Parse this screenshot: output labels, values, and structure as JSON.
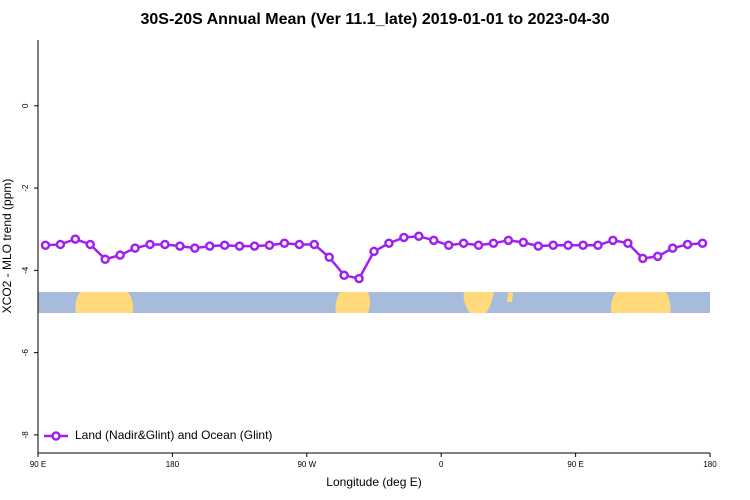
{
  "chart_data": {
    "type": "line",
    "title": "30S-20S Annual Mean (Ver 11.1_late)   2019-01-01 to 2023-04-30",
    "x_label": "Longitude (deg E)",
    "y_label": "XCO2 - MLO trend (ppm)",
    "x": [
      95,
      105,
      115,
      125,
      135,
      145,
      155,
      165,
      175,
      185,
      195,
      205,
      215,
      225,
      235,
      245,
      255,
      265,
      275,
      285,
      295,
      305,
      315,
      325,
      335,
      345,
      355,
      365,
      375,
      385,
      395,
      405,
      415,
      425,
      435,
      445,
      455,
      465,
      475,
      485,
      495,
      505,
      515,
      525,
      535
    ],
    "series": [
      {
        "name": "Land (Nadir&Glint) and Ocean (Glint)",
        "color": "#a020f0",
        "values": [
          -3.39,
          -3.37,
          -3.24,
          -3.37,
          -3.73,
          -3.63,
          -3.46,
          -3.37,
          -3.37,
          -3.41,
          -3.46,
          -3.41,
          -3.39,
          -3.41,
          -3.41,
          -3.39,
          -3.34,
          -3.37,
          -3.37,
          -3.68,
          -4.12,
          -4.2,
          -3.54,
          -3.34,
          -3.2,
          -3.17,
          -3.27,
          -3.39,
          -3.34,
          -3.39,
          -3.34,
          -3.27,
          -3.32,
          -3.41,
          -3.39,
          -3.39,
          -3.39,
          -3.39,
          -3.27,
          -3.34,
          -3.71,
          -3.66,
          -3.46,
          -3.37,
          -3.34
        ]
      }
    ],
    "xlim": [
      90,
      540
    ],
    "xticks": [
      {
        "value": 90,
        "label": "90 E"
      },
      {
        "value": 180,
        "label": "180"
      },
      {
        "value": 270,
        "label": "90 W"
      },
      {
        "value": 360,
        "label": "0"
      },
      {
        "value": 450,
        "label": "90 E"
      },
      {
        "value": 540,
        "label": "180"
      }
    ],
    "ylim": [
      -8.44,
      1.6
    ],
    "yticks": [
      0,
      -2,
      -4,
      -6,
      -8
    ],
    "legend": "bottom-left"
  }
}
